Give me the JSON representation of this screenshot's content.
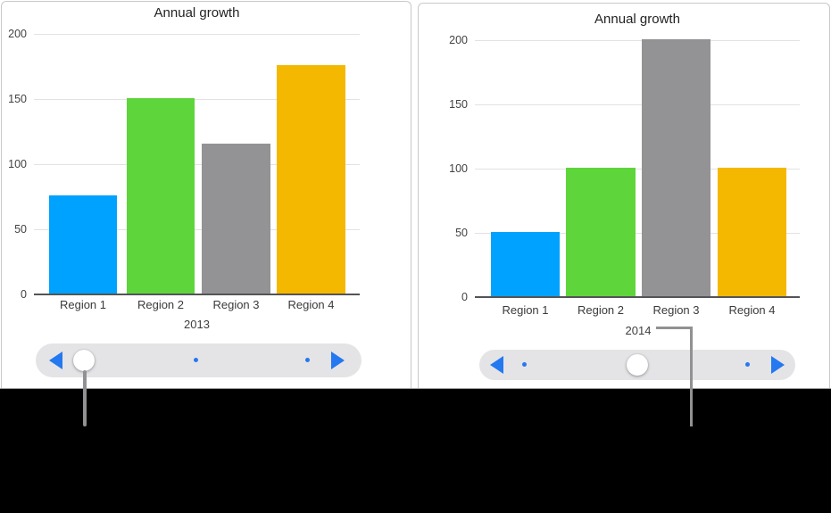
{
  "chart_data": [
    {
      "type": "bar",
      "title": "Annual growth",
      "categories": [
        "Region 1",
        "Region 2",
        "Region 3",
        "Region 4"
      ],
      "values": [
        75,
        150,
        115,
        175
      ],
      "xlabel": "2013",
      "ylabel": "",
      "ylim": [
        0,
        200
      ],
      "yticks": [
        0,
        50,
        100,
        150,
        200
      ],
      "grid": true,
      "legend": "none",
      "bar_colors": [
        "#00A2FF",
        "#5FD53C",
        "#939395",
        "#F5B800"
      ]
    },
    {
      "type": "bar",
      "title": "Annual growth",
      "categories": [
        "Region 1",
        "Region 2",
        "Region 3",
        "Region 4"
      ],
      "values": [
        50,
        100,
        200,
        100
      ],
      "xlabel": "2014",
      "ylabel": "",
      "ylim": [
        0,
        200
      ],
      "yticks": [
        0,
        50,
        100,
        150,
        200
      ],
      "grid": true,
      "legend": "none",
      "bar_colors": [
        "#00A2FF",
        "#5FD53C",
        "#939395",
        "#F5B800"
      ]
    }
  ],
  "sliders": [
    {
      "name": "year-scrubber-2013",
      "thumb_page": 1,
      "page_count": 3,
      "icons": [
        "previous-arrow-icon",
        "next-arrow-icon"
      ]
    },
    {
      "name": "year-scrubber-2014",
      "thumb_page": 2,
      "page_count": 3,
      "icons": [
        "previous-arrow-icon",
        "next-arrow-icon"
      ]
    }
  ],
  "colors": {
    "accent_blue": "#2478F0",
    "slider_track": "#E4E4E6",
    "axis_line": "#545456",
    "gridline": "#E2E2E4",
    "tick_text": "#424244",
    "callout_line": "#919193",
    "panel_border": "#C9C9CB",
    "bottom_background": "#000000"
  }
}
